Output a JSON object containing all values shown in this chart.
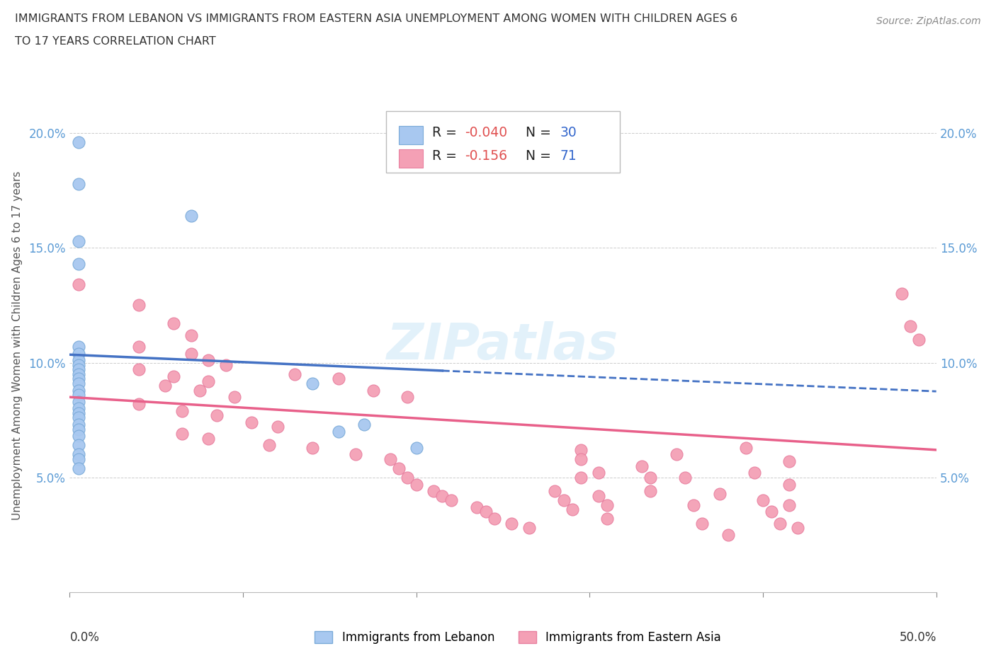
{
  "title_line1": "IMMIGRANTS FROM LEBANON VS IMMIGRANTS FROM EASTERN ASIA UNEMPLOYMENT AMONG WOMEN WITH CHILDREN AGES 6",
  "title_line2": "TO 17 YEARS CORRELATION CHART",
  "source": "Source: ZipAtlas.com",
  "ylabel": "Unemployment Among Women with Children Ages 6 to 17 years",
  "yticks": [
    0.05,
    0.1,
    0.15,
    0.2
  ],
  "ytick_labels": [
    "5.0%",
    "10.0%",
    "15.0%",
    "20.0%"
  ],
  "xlim": [
    0.0,
    0.5
  ],
  "ylim": [
    0.0,
    0.215
  ],
  "legend_r1": "-0.040",
  "legend_n1": "30",
  "legend_r2": "-0.156",
  "legend_n2": "71",
  "color_lebanon": "#a8c8f0",
  "color_lebanon_edge": "#7aaad8",
  "color_ea": "#f4a0b5",
  "color_ea_edge": "#e880a0",
  "color_lebanon_line": "#4472c4",
  "color_ea_line": "#e8608a",
  "watermark_color": "#d0e8f8",
  "lebanon_x": [
    0.005,
    0.005,
    0.07,
    0.005,
    0.005,
    0.005,
    0.005,
    0.005,
    0.005,
    0.005,
    0.005,
    0.005,
    0.005,
    0.005,
    0.005,
    0.005,
    0.005,
    0.005,
    0.005,
    0.005,
    0.005,
    0.005,
    0.005,
    0.005,
    0.14,
    0.155,
    0.17,
    0.2,
    0.005,
    0.005
  ],
  "lebanon_y": [
    0.196,
    0.178,
    0.164,
    0.153,
    0.143,
    0.107,
    0.104,
    0.101,
    0.099,
    0.097,
    0.095,
    0.093,
    0.091,
    0.088,
    0.086,
    0.083,
    0.08,
    0.078,
    0.076,
    0.073,
    0.071,
    0.068,
    0.064,
    0.06,
    0.091,
    0.07,
    0.073,
    0.063,
    0.058,
    0.054
  ],
  "ea_x": [
    0.005,
    0.04,
    0.06,
    0.07,
    0.04,
    0.07,
    0.08,
    0.09,
    0.04,
    0.06,
    0.08,
    0.055,
    0.075,
    0.095,
    0.04,
    0.065,
    0.085,
    0.105,
    0.12,
    0.065,
    0.08,
    0.13,
    0.155,
    0.175,
    0.195,
    0.115,
    0.14,
    0.165,
    0.185,
    0.19,
    0.195,
    0.2,
    0.21,
    0.215,
    0.22,
    0.235,
    0.24,
    0.245,
    0.255,
    0.265,
    0.28,
    0.285,
    0.29,
    0.295,
    0.295,
    0.295,
    0.305,
    0.305,
    0.31,
    0.31,
    0.33,
    0.335,
    0.335,
    0.35,
    0.355,
    0.36,
    0.365,
    0.375,
    0.38,
    0.39,
    0.395,
    0.4,
    0.405,
    0.41,
    0.415,
    0.415,
    0.415,
    0.42,
    0.48,
    0.485,
    0.49
  ],
  "ea_y": [
    0.134,
    0.125,
    0.117,
    0.112,
    0.107,
    0.104,
    0.101,
    0.099,
    0.097,
    0.094,
    0.092,
    0.09,
    0.088,
    0.085,
    0.082,
    0.079,
    0.077,
    0.074,
    0.072,
    0.069,
    0.067,
    0.095,
    0.093,
    0.088,
    0.085,
    0.064,
    0.063,
    0.06,
    0.058,
    0.054,
    0.05,
    0.047,
    0.044,
    0.042,
    0.04,
    0.037,
    0.035,
    0.032,
    0.03,
    0.028,
    0.044,
    0.04,
    0.036,
    0.062,
    0.058,
    0.05,
    0.052,
    0.042,
    0.038,
    0.032,
    0.055,
    0.05,
    0.044,
    0.06,
    0.05,
    0.038,
    0.03,
    0.043,
    0.025,
    0.063,
    0.052,
    0.04,
    0.035,
    0.03,
    0.057,
    0.047,
    0.038,
    0.028,
    0.13,
    0.116,
    0.11
  ],
  "leb_line_x0": 0.0,
  "leb_line_y0": 0.1035,
  "leb_line_solid_x1": 0.215,
  "leb_line_y1": 0.0965,
  "leb_line_dash_x1": 0.5,
  "leb_line_ydash1": 0.0875,
  "ea_line_x0": 0.0,
  "ea_line_y0": 0.085,
  "ea_line_x1": 0.5,
  "ea_line_y1": 0.062
}
